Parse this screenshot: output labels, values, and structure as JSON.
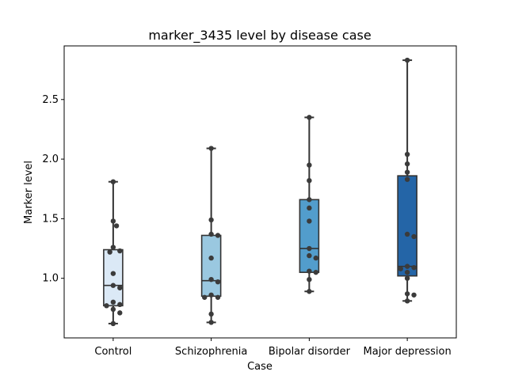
{
  "chart_data": {
    "type": "box",
    "title": "marker_3435 level by disease case",
    "xlabel": "Case",
    "ylabel": "Marker level",
    "categories": [
      "Control",
      "Schizophrenia",
      "Bipolar disorder",
      "Major depression"
    ],
    "ylim": [
      0.5,
      2.95
    ],
    "yticks": [
      1.0,
      1.5,
      2.0,
      2.5
    ],
    "ytick_labels": [
      "1.0",
      "1.5",
      "2.0",
      "2.5"
    ],
    "grid": false,
    "colors": [
      "#dbe9f6",
      "#9ac8e0",
      "#529dcc",
      "#2465a7"
    ],
    "boxes": [
      {
        "whislo": 0.62,
        "q1": 0.77,
        "med": 0.94,
        "q3": 1.24,
        "whishi": 1.81
      },
      {
        "whislo": 0.63,
        "q1": 0.85,
        "med": 0.98,
        "q3": 1.36,
        "whishi": 2.09
      },
      {
        "whislo": 0.89,
        "q1": 1.05,
        "med": 1.25,
        "q3": 1.66,
        "whishi": 2.35
      },
      {
        "whislo": 0.81,
        "q1": 1.02,
        "med": 1.1,
        "q3": 1.86,
        "whishi": 2.83
      }
    ],
    "points": [
      [
        1.81,
        1.48,
        1.44,
        1.26,
        1.23,
        1.22,
        1.04,
        0.94,
        0.92,
        0.8,
        0.78,
        0.77,
        0.74,
        0.71,
        0.62
      ],
      [
        2.09,
        1.49,
        1.37,
        1.36,
        1.17,
        0.99,
        0.97,
        0.86,
        0.84,
        0.84,
        0.7,
        0.63
      ],
      [
        2.35,
        1.95,
        1.82,
        1.66,
        1.59,
        1.48,
        1.25,
        1.19,
        1.17,
        1.06,
        1.05,
        0.99,
        0.89
      ],
      [
        2.83,
        2.04,
        1.96,
        1.89,
        1.83,
        1.37,
        1.35,
        1.1,
        1.09,
        1.08,
        1.05,
        1.0,
        0.87,
        0.86,
        0.81
      ]
    ]
  }
}
